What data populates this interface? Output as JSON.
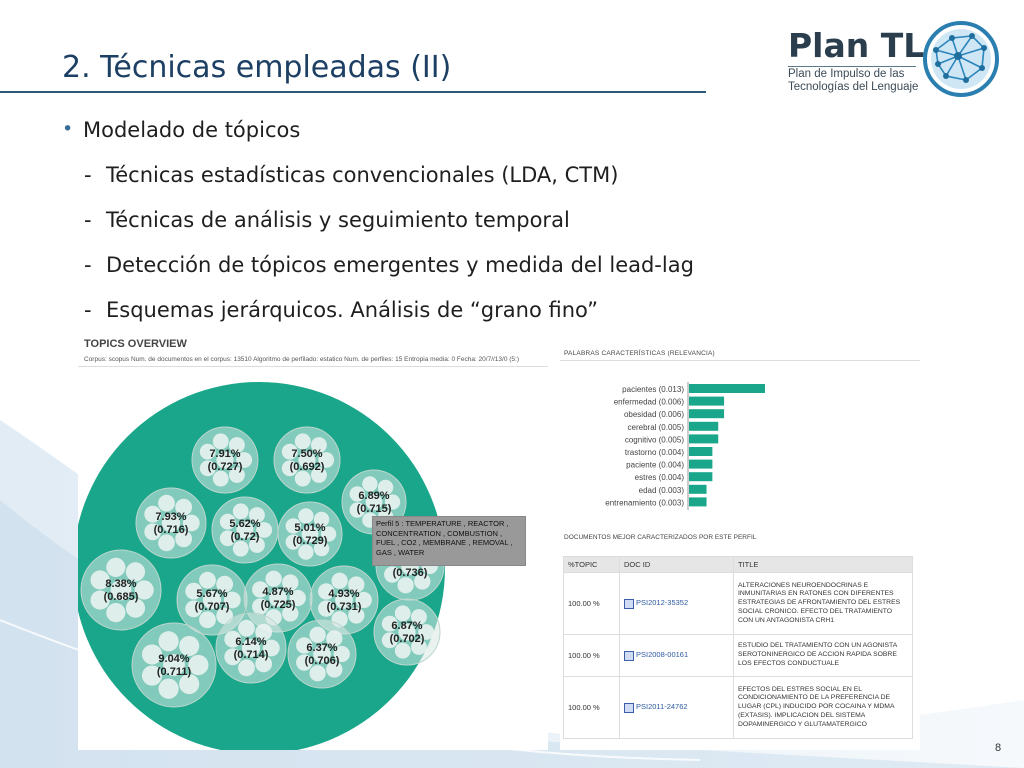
{
  "slide": {
    "title": "2. Técnicas empleadas (II)",
    "page_number": "8",
    "logo": {
      "name": "Plan TL",
      "subtitle_line1": "Plan de Impulso de las",
      "subtitle_line2": "Tecnologías del Lenguaje"
    },
    "bullet_main": "Modelado de tópicos",
    "sub_bullets": [
      "Técnicas estadísticas convencionales (LDA, CTM)",
      "Técnicas de análisis y seguimiento temporal",
      "Detección de tópicos emergentes y medida del lead-lag",
      "Esquemas jerárquicos. Análisis de “grano fino”"
    ]
  },
  "topics_overview": {
    "title": "TOPICS OVERVIEW",
    "meta": "Corpus: scopus   Num. de documentos en el corpus: 13510   Algoritmo de perfilado: estatico   Num. de perfiles: 15   Entropia media: 0   Fecha: 20/7//13/0 (5:)",
    "accent_color": "#19a68a",
    "topics": [
      {
        "pct": "7.91%",
        "score": "(0.727)"
      },
      {
        "pct": "7.50%",
        "score": "(0.692)"
      },
      {
        "pct": "6.89%",
        "score": "(0.715)"
      },
      {
        "pct": "7.93%",
        "score": "(0.716)"
      },
      {
        "pct": "5.62%",
        "score": "(0.72)"
      },
      {
        "pct": "5.01%",
        "score": "(0.729)"
      },
      {
        "pct": "",
        "score": "(0.736)"
      },
      {
        "pct": "8.38%",
        "score": "(0.685)"
      },
      {
        "pct": "5.67%",
        "score": "(0.707)"
      },
      {
        "pct": "4.87%",
        "score": "(0.725)"
      },
      {
        "pct": "4.93%",
        "score": "(0.731)"
      },
      {
        "pct": "6.87%",
        "score": "(0.702)"
      },
      {
        "pct": "9.04%",
        "score": "(0.711)"
      },
      {
        "pct": "6.14%",
        "score": "(0.714)"
      },
      {
        "pct": "6.37%",
        "score": "(0.706)"
      }
    ],
    "tooltip": "Perfil 5 : TEMPERATURE , REACTOR , CONCENTRATION , COMBUSTION , FUEL , CO2 , MEMBRANE , REMOVAL , GAS , WATER"
  },
  "keywords": {
    "title": "PALABRAS CARACTERÍSTICAS (RELEVANCIA)"
  },
  "chart_data": {
    "type": "bar",
    "orientation": "horizontal",
    "categories": [
      "pacientes (0.013)",
      "enfermedad (0.006)",
      "obesidad (0.006)",
      "cerebral (0.005)",
      "cognitivo (0.005)",
      "trastorno (0.004)",
      "paciente (0.004)",
      "estres (0.004)",
      "edad (0.003)",
      "entrenamiento (0.003)"
    ],
    "values": [
      0.013,
      0.006,
      0.006,
      0.005,
      0.005,
      0.004,
      0.004,
      0.004,
      0.003,
      0.003
    ],
    "color": "#19a68a"
  },
  "documents": {
    "title": "DOCUMENTOS MEJOR CARACTERIZADOS POR ESTE PERFIL",
    "headers": [
      "%TOPIC",
      "DOC ID",
      "TITLE"
    ],
    "rows": [
      {
        "topic": "100.00 %",
        "doc_id": "PSI2012-35352",
        "title": "ALTERACIONES NEUROENDOCRINAS E INMUNITARIAS EN RATONES CON DIFERENTES ESTRATEGIAS DE AFRONTAMIENTO DEL ESTRES SOCIAL CRONICO. EFECTO DEL TRATAMIENTO CON UN ANTAGONISTA CRH1"
      },
      {
        "topic": "100.00 %",
        "doc_id": "PSI2008-00161",
        "title": "ESTUDIO DEL TRATAMIENTO CON UN AGONISTA SEROTONINERGICO DE ACCION RAPIDA SOBRE LOS EFECTOS CONDUCTUALE"
      },
      {
        "topic": "100.00 %",
        "doc_id": "PSI2011-24762",
        "title": "EFECTOS DEL ESTRES SOCIAL EN EL CONDICIONAMIENTO DE LA PREFERENCIA DE LUGAR (CPL) INDUCIDO POR COCAINA Y MDMA (EXTASIS). IMPLICACION DEL SISTEMA DOPAMINERGICO Y GLUTAMATERGICO"
      }
    ]
  }
}
